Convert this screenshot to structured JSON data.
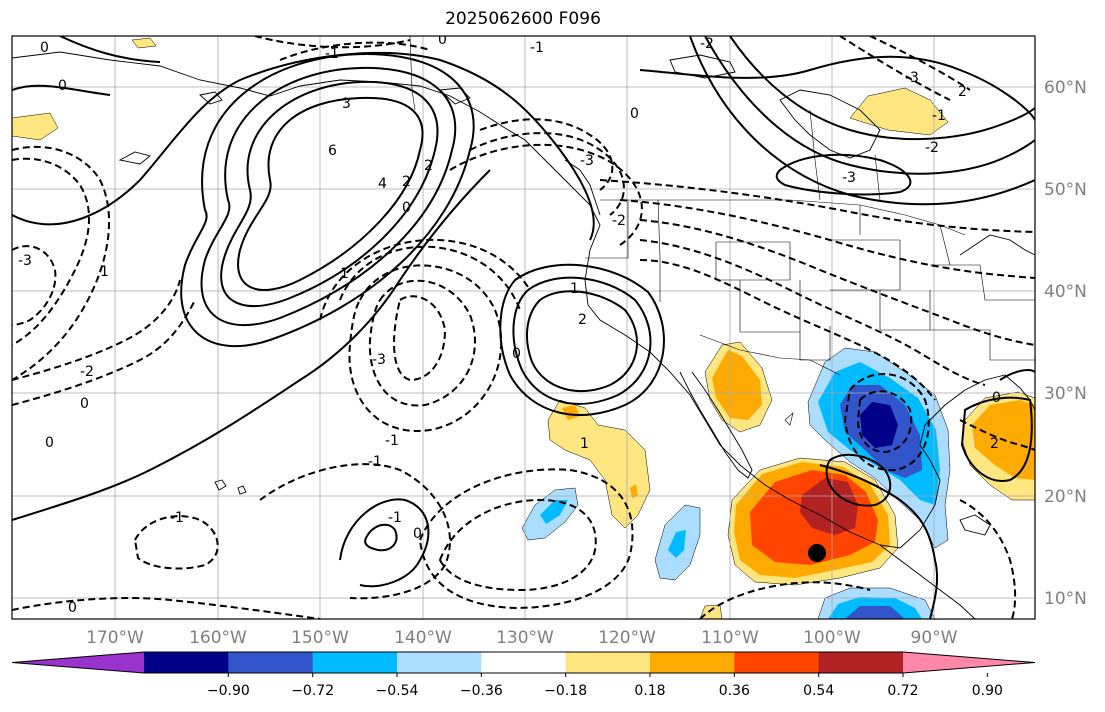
{
  "title": "2025062600 F096",
  "latitude_labels": [
    "60°N",
    "50°N",
    "40°N",
    "30°N",
    "20°N",
    "10°N"
  ],
  "longitude_labels": [
    "170°W",
    "160°W",
    "150°W",
    "140°W",
    "130°W",
    "120°W",
    "110°W",
    "100°W",
    "90°W"
  ],
  "colorbar": {
    "ticks": [
      "−0.90",
      "−0.72",
      "−0.54",
      "−0.36",
      "−0.18",
      "0.18",
      "0.36",
      "0.54",
      "0.72",
      "0.90"
    ],
    "colors": [
      "#9933cc",
      "#000088",
      "#3355cc",
      "#00bbff",
      "#aaddff",
      "#ffffff",
      "#ffe680",
      "#ffaa00",
      "#ff4400",
      "#b22222",
      "#ff88aa"
    ]
  },
  "contour_labels": [
    "0",
    "0",
    "-1",
    "-1",
    "0",
    "-2",
    "3",
    "-3",
    "-3",
    "0",
    "2",
    "6",
    "4",
    "2",
    "0",
    "1",
    "-2",
    "-3",
    "-1",
    "2",
    "-2",
    "-3",
    "1",
    "2",
    "0",
    "1",
    "-3",
    "-2",
    "-1",
    "0",
    "-1",
    "0",
    "0",
    "-1",
    "-1",
    "1",
    "0",
    "0",
    "2"
  ],
  "colors": {
    "fill_yellow": "#ffe680",
    "fill_orange": "#ffaa00",
    "fill_red": "#ff4400",
    "fill_darkred": "#b22222",
    "fill_lightblue": "#aaddff",
    "fill_cyan": "#00bbff",
    "fill_blue": "#3355cc",
    "fill_navy": "#000088"
  }
}
